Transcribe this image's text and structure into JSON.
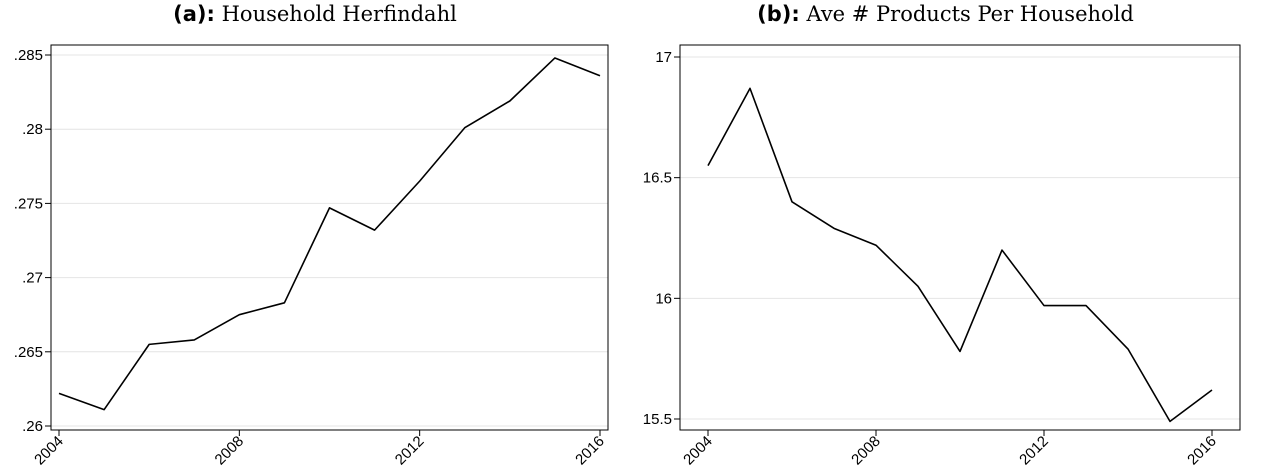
{
  "chart_data": [
    {
      "type": "line",
      "panel_label": "(a):",
      "title": "Household Herfindahl",
      "xlabel": "",
      "ylabel": "",
      "x": [
        2004,
        2005,
        2006,
        2007,
        2008,
        2009,
        2010,
        2011,
        2012,
        2013,
        2014,
        2015,
        2016
      ],
      "series": [
        {
          "values": [
            0.2622,
            0.2611,
            0.2655,
            0.2658,
            0.2675,
            0.2683,
            0.2747,
            0.2732,
            0.2765,
            0.2801,
            0.2819,
            0.2848,
            0.2836
          ]
        }
      ],
      "xticks": [
        2004,
        2008,
        2012,
        2016
      ],
      "xtick_labels": [
        "2004",
        "2008",
        "2012",
        "2016"
      ],
      "yticks": [
        0.26,
        0.265,
        0.27,
        0.275,
        0.28,
        0.285
      ],
      "ytick_labels": [
        ".26",
        ".265",
        ".27",
        ".275",
        ".28",
        ".285"
      ],
      "xlim": [
        2004,
        2016
      ],
      "ylim": [
        0.26,
        0.285
      ],
      "grid": true,
      "line_color": "#000000",
      "grid_color": "#e4e4e4"
    },
    {
      "type": "line",
      "panel_label": "(b):",
      "title": "Ave # Products Per Household",
      "xlabel": "",
      "ylabel": "",
      "x": [
        2004,
        2005,
        2006,
        2007,
        2008,
        2009,
        2010,
        2011,
        2012,
        2013,
        2014,
        2015,
        2016
      ],
      "series": [
        {
          "values": [
            16.55,
            16.87,
            16.4,
            16.29,
            16.22,
            16.05,
            15.78,
            16.2,
            15.97,
            15.97,
            15.79,
            15.49,
            15.62
          ]
        }
      ],
      "xticks": [
        2004,
        2008,
        2012,
        2016
      ],
      "xtick_labels": [
        "2004",
        "2008",
        "2012",
        "2016"
      ],
      "yticks": [
        15.5,
        16,
        16.5,
        17
      ],
      "ytick_labels": [
        "15.5",
        "16",
        "16.5",
        "17"
      ],
      "xlim": [
        2004,
        2016
      ],
      "ylim": [
        15.5,
        17
      ],
      "grid": true,
      "line_color": "#000000",
      "grid_color": "#e4e4e4"
    }
  ]
}
